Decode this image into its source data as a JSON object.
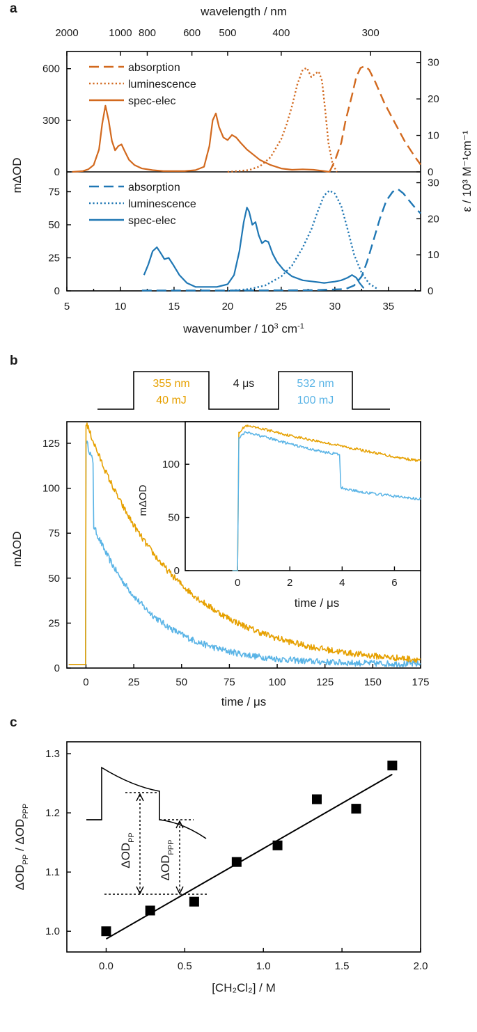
{
  "colors": {
    "orange": "#d2691e",
    "blue": "#1f77b4",
    "gold": "#e6a000",
    "sky": "#5ab4e6",
    "black": "#000000"
  },
  "chart_data": [
    {
      "id": "a",
      "type": "line",
      "panel_label": "a",
      "xlabel_base": "wavenumber / 10",
      "xlabel_exp": "3",
      "xlabel_unit": " cm",
      "xlabel_unit_exp": "-1",
      "top_axis_label": "wavelength / nm",
      "left_label": "mΔOD",
      "right_label": "ε / 10³ M⁻¹cm⁻¹",
      "xlim": [
        5,
        38
      ],
      "x_ticks": [
        5,
        10,
        15,
        20,
        25,
        30,
        35
      ],
      "top_ticks": [
        {
          "label": "2000",
          "x": 5.0
        },
        {
          "label": "1000",
          "x": 10.0
        },
        {
          "label": "800",
          "x": 12.5
        },
        {
          "label": "600",
          "x": 16.667
        },
        {
          "label": "500",
          "x": 20.0
        },
        {
          "label": "400",
          "x": 25.0
        },
        {
          "label": "300",
          "x": 33.333
        }
      ],
      "subplots": [
        {
          "name": "upper",
          "ylim_left": [
            0,
            700
          ],
          "ylim_right": [
            0,
            33
          ],
          "left_ticks": [
            0,
            300,
            600
          ],
          "right_ticks": [
            0,
            10,
            20,
            30
          ],
          "legend": [
            "absorption",
            "luminescence",
            "spec-elec"
          ],
          "series": [
            {
              "name": "spec-elec",
              "axis": "left",
              "style": "solid",
              "x": [
                5.5,
                6.5,
                7.0,
                7.5,
                8.0,
                8.3,
                8.6,
                8.9,
                9.2,
                9.5,
                9.8,
                10.1,
                10.4,
                10.8,
                11.3,
                12,
                13,
                14,
                15,
                16,
                17,
                17.8,
                18.3,
                18.6,
                18.9,
                19.2,
                19.6,
                20.0,
                20.4,
                20.8,
                21.2,
                21.8,
                22.4,
                23.0,
                24,
                25,
                26,
                27,
                28,
                29,
                29.5
              ],
              "y": [
                0,
                5,
                15,
                40,
                130,
                280,
                385,
                300,
                180,
                125,
                150,
                160,
                120,
                70,
                40,
                20,
                10,
                5,
                5,
                5,
                10,
                30,
                150,
                300,
                340,
                260,
                200,
                185,
                215,
                200,
                170,
                130,
                100,
                70,
                40,
                20,
                12,
                15,
                12,
                5,
                0
              ]
            },
            {
              "name": "luminescence",
              "axis": "right",
              "style": "dotted",
              "x": [
                20,
                22,
                23,
                24,
                25,
                25.5,
                26,
                26.5,
                27,
                27.4,
                27.8,
                28.2,
                28.5,
                28.8,
                29.1,
                29.4,
                29.8,
                30.2
              ],
              "y": [
                0,
                0.5,
                1.5,
                4,
                9,
                13,
                18,
                24,
                28,
                28.5,
                26,
                27,
                27.5,
                25,
                17,
                8,
                2,
                0
              ]
            },
            {
              "name": "absorption",
              "axis": "right",
              "style": "dashed",
              "x": [
                29.5,
                30,
                30.6,
                31,
                31.6,
                32,
                32.4,
                32.8,
                33.2,
                33.8,
                34.6,
                35.5,
                36.5,
                37.5,
                38
              ],
              "y": [
                0,
                3,
                8,
                14,
                21,
                26,
                28.5,
                29,
                28,
                24.5,
                19,
                14,
                8.5,
                4,
                2
              ]
            }
          ]
        },
        {
          "name": "lower",
          "ylim_left": [
            0,
            90
          ],
          "ylim_right": [
            0,
            33
          ],
          "left_ticks": [
            0,
            25,
            50,
            75
          ],
          "right_ticks": [
            0,
            10,
            20,
            30
          ],
          "legend": [
            "absorption",
            "luminescence",
            "spec-elec"
          ],
          "series": [
            {
              "name": "spec-elec",
              "axis": "left",
              "style": "solid",
              "x": [
                12.2,
                12.6,
                13.0,
                13.4,
                13.8,
                14.1,
                14.5,
                14.9,
                15.5,
                16.2,
                17,
                18,
                19,
                20,
                20.6,
                21.1,
                21.5,
                21.8,
                22.0,
                22.3,
                22.6,
                22.9,
                23.2,
                23.5,
                23.8,
                24.2,
                24.6,
                25.2,
                26,
                27,
                28,
                29,
                30,
                30.6,
                31.2,
                31.6,
                32.0,
                32.3,
                32.7
              ],
              "y": [
                12,
                20,
                30,
                33,
                28,
                24,
                25,
                20,
                12,
                6,
                3,
                3,
                3,
                5,
                12,
                30,
                52,
                63,
                60,
                50,
                52,
                42,
                36,
                38,
                37,
                28,
                22,
                16,
                11,
                8,
                7,
                6,
                7,
                8,
                10,
                12,
                10,
                6,
                2
              ]
            },
            {
              "name": "luminescence",
              "axis": "right",
              "style": "dotted",
              "x": [
                20,
                22,
                23.5,
                25,
                26,
                27,
                27.8,
                28.4,
                29.0,
                29.5,
                30.0,
                30.6,
                31.2,
                31.8,
                32.5,
                33.2,
                34
              ],
              "y": [
                0,
                0.5,
                1.5,
                4,
                7,
                12,
                17,
                22,
                26.5,
                27.8,
                27,
                23.5,
                17,
                10,
                5,
                2,
                0.5
              ]
            },
            {
              "name": "absorption",
              "axis": "right",
              "style": "dashed",
              "x": [
                12,
                20,
                28,
                31,
                31.8,
                32.5,
                33.0,
                33.6,
                34.2,
                34.8,
                35.4,
                35.9,
                36.4,
                37.0,
                37.5,
                38
              ],
              "y": [
                0.1,
                0.1,
                0.2,
                0.5,
                1.5,
                4,
                8,
                14,
                20,
                25,
                27.5,
                28.2,
                27,
                24.8,
                23,
                21.5
              ]
            }
          ]
        }
      ]
    },
    {
      "id": "b",
      "type": "line",
      "panel_label": "b",
      "xlabel": "time / μs",
      "ylabel": "mΔOD",
      "xlim": [
        -10,
        175
      ],
      "ylim": [
        0,
        137
      ],
      "x_ticks": [
        0,
        25,
        50,
        75,
        100,
        125,
        150,
        175
      ],
      "y_ticks": [
        0,
        25,
        50,
        75,
        100,
        125
      ],
      "pulse_scheme": {
        "pulse1_line1": "355 nm",
        "pulse1_line2": "40 mJ",
        "gap": "4 μs",
        "pulse2_line1": "532 nm",
        "pulse2_line2": "100 mJ"
      },
      "series": [
        {
          "name": "355 nm",
          "color_key": "gold",
          "baseline": 2,
          "t0": 0,
          "peak": 135,
          "tau": 45,
          "floor": 0,
          "step_t": null,
          "step_y": null
        },
        {
          "name": "532 nm",
          "color_key": "sky",
          "baseline": 2,
          "t0": 0,
          "peak": 125,
          "tau": 30,
          "floor": 0,
          "step_t": 4,
          "step_y": 77
        }
      ],
      "inset": {
        "xlabel": "time / μs",
        "ylabel": "mΔOD",
        "xlim": [
          -2,
          7
        ],
        "ylim": [
          0,
          140
        ],
        "x_ticks": [
          0,
          2,
          4,
          6
        ],
        "y_ticks": [
          0,
          50,
          100
        ],
        "series": [
          {
            "name": "355 nm",
            "color_key": "gold",
            "t": [
              -0.2,
              0,
              0.05,
              0.3,
              1,
              2,
              3,
              4,
              5,
              6,
              7
            ],
            "y": [
              0,
              0,
              130,
              136,
              133,
              127,
              122,
              117,
              112,
              107,
              103
            ]
          },
          {
            "name": "532 nm",
            "color_key": "sky",
            "t": [
              -0.2,
              0,
              0.05,
              0.3,
              1,
              2,
              3,
              3.9,
              3.95,
              4.5,
              5,
              6,
              7
            ],
            "y": [
              0,
              0,
              125,
              130,
              126,
              119,
              113,
              109,
              78,
              75,
              73,
              70,
              67
            ]
          }
        ]
      }
    },
    {
      "id": "c",
      "type": "scatter",
      "panel_label": "c",
      "xlabel": "[CH₂Cl₂] / M",
      "ylabel": "ΔOD_PP / ΔOD_PPP",
      "xlim": [
        -0.25,
        2.0
      ],
      "ylim": [
        0.965,
        1.32
      ],
      "x_ticks": [
        0.0,
        0.5,
        1.0,
        1.5,
        2.0
      ],
      "y_ticks": [
        1.0,
        1.1,
        1.2,
        1.3
      ],
      "points": [
        [
          0.0,
          1.0
        ],
        [
          0.28,
          1.035
        ],
        [
          0.56,
          1.05
        ],
        [
          0.83,
          1.117
        ],
        [
          1.09,
          1.145
        ],
        [
          1.34,
          1.223
        ],
        [
          1.59,
          1.207
        ],
        [
          1.82,
          1.28
        ]
      ],
      "fit": {
        "x": [
          0.0,
          1.82
        ],
        "y": [
          0.987,
          1.265
        ]
      },
      "inset_labels": {
        "pp_base": "ΔOD",
        "pp_sub": "PP",
        "ppp_base": "ΔOD",
        "ppp_sub": "PPP"
      }
    }
  ]
}
